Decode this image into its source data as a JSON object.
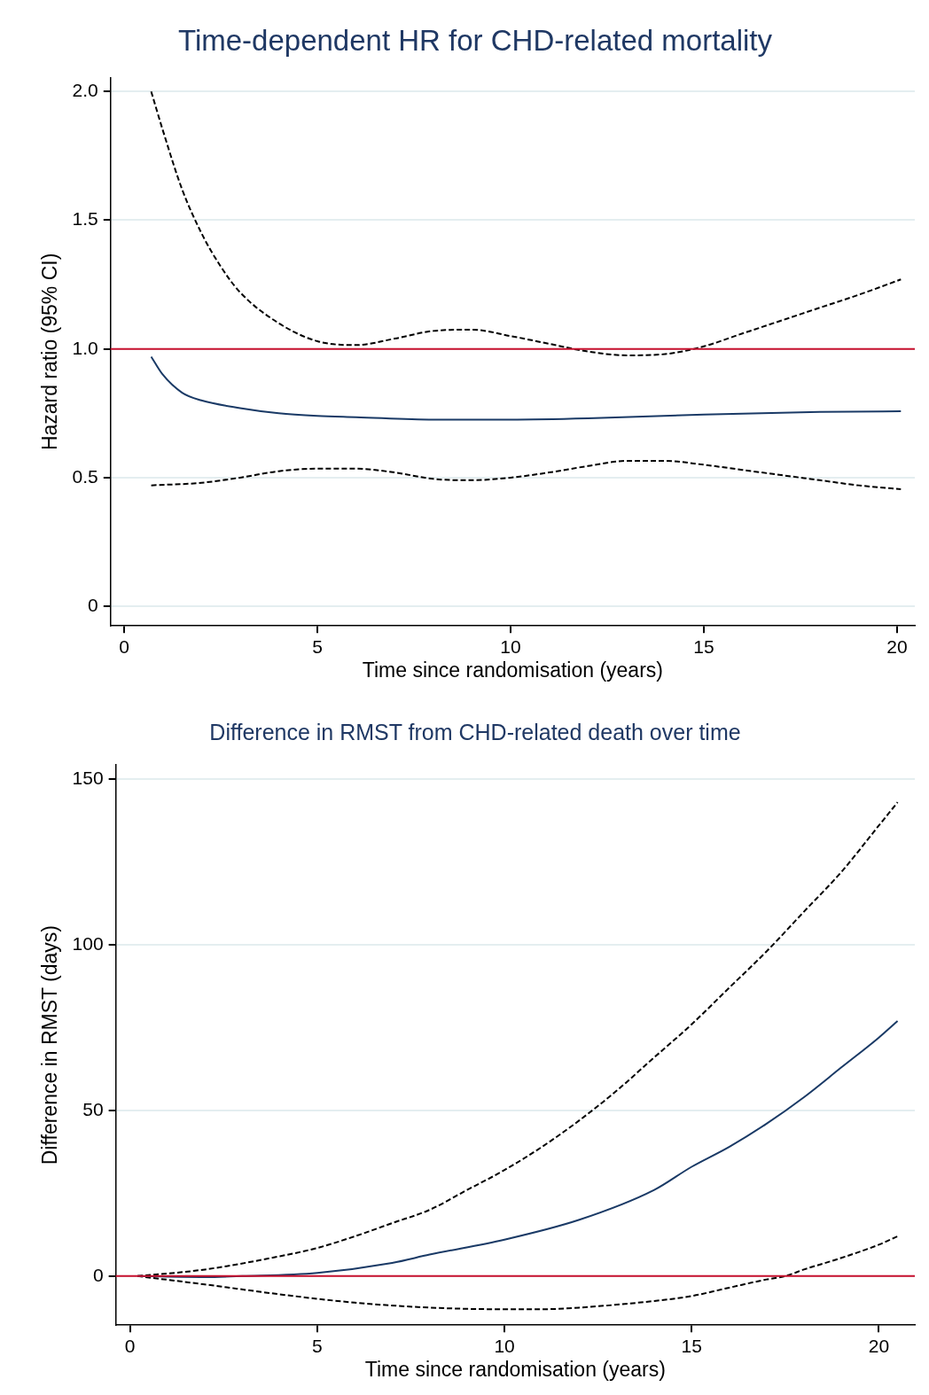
{
  "chart_data": [
    {
      "type": "line",
      "title": "Time-dependent HR for CHD-related mortality",
      "xlabel": "Time since randomisation (years)",
      "ylabel": "Hazard ratio (95% CI)",
      "xlim": [
        -0.35,
        20.46
      ],
      "ylim": [
        -0.076,
        2.054
      ],
      "xticks": [
        0,
        5,
        10,
        15,
        20
      ],
      "yticks": [
        {
          "value": 0,
          "label": "0"
        },
        {
          "value": 0.5,
          "label": "0.5"
        },
        {
          "value": 1,
          "label": "1.0"
        },
        {
          "value": 1.5,
          "label": "1.5"
        },
        {
          "value": 2,
          "label": "2.0"
        }
      ],
      "grid": "y",
      "legend": false,
      "marker": "none",
      "series": [
        {
          "color": "#1a3a66",
          "line_style": "solid",
          "x": [
            0.7,
            1,
            1.5,
            2,
            3,
            4,
            5,
            6,
            8,
            10,
            12,
            15,
            18,
            20.1
          ],
          "values": [
            0.97,
            0.9,
            0.83,
            0.8,
            0.77,
            0.75,
            0.74,
            0.735,
            0.725,
            0.725,
            0.73,
            0.745,
            0.755,
            0.758
          ]
        },
        {
          "color": "#000000",
          "line_style": "dashed",
          "x": [
            0.7,
            1,
            1.5,
            2,
            2.5,
            3,
            4,
            5,
            6,
            7,
            8,
            9,
            10,
            11,
            12,
            13,
            14,
            15,
            16,
            17,
            18,
            19,
            20.1
          ],
          "values": [
            2.0,
            1.85,
            1.62,
            1.45,
            1.32,
            1.22,
            1.1,
            1.03,
            1.015,
            1.04,
            1.07,
            1.075,
            1.05,
            1.02,
            0.99,
            0.975,
            0.98,
            1.01,
            1.06,
            1.11,
            1.16,
            1.21,
            1.27
          ]
        },
        {
          "color": "#000000",
          "line_style": "dashed",
          "x": [
            0.7,
            2,
            3,
            4,
            5,
            6,
            7,
            8,
            9,
            10,
            11,
            12,
            13,
            14,
            15,
            16,
            17,
            18,
            19,
            20.1
          ],
          "values": [
            0.47,
            0.48,
            0.5,
            0.525,
            0.535,
            0.535,
            0.52,
            0.495,
            0.49,
            0.5,
            0.52,
            0.545,
            0.565,
            0.565,
            0.55,
            0.53,
            0.51,
            0.49,
            0.47,
            0.455
          ]
        }
      ],
      "ref_lines": [
        {
          "axis": "y",
          "value": 1,
          "color": "#c8102e"
        }
      ]
    },
    {
      "type": "line",
      "title": "Difference in RMST from CHD-related death over time",
      "xlabel": "Time since randomisation (years)",
      "ylabel": "Difference in RMST (days)",
      "xlim": [
        -0.38,
        20.96
      ],
      "ylim": [
        -14.8,
        154.3
      ],
      "xticks": [
        0,
        5,
        10,
        15,
        20
      ],
      "yticks": [
        0,
        50,
        100,
        150
      ],
      "grid": "y",
      "legend": false,
      "marker": "none",
      "series": [
        {
          "color": "#1a3a66",
          "line_style": "solid",
          "x": [
            0.2,
            2,
            3,
            5,
            7,
            8,
            10,
            12,
            14,
            15,
            16,
            17,
            18,
            19,
            20,
            20.5
          ],
          "values": [
            0,
            -0.3,
            0,
            1,
            4,
            6.5,
            11,
            17,
            26,
            33,
            39,
            46,
            54,
            63,
            72,
            77
          ]
        },
        {
          "color": "#000000",
          "line_style": "dashed",
          "x": [
            0.2,
            2,
            4,
            5,
            6,
            7,
            8,
            9,
            10,
            11,
            12,
            13,
            14,
            15,
            16,
            17,
            18,
            19,
            20,
            20.5
          ],
          "values": [
            0,
            2,
            6,
            8.5,
            12,
            16,
            20,
            26,
            32,
            39,
            47,
            56,
            66,
            76,
            87,
            98,
            110,
            122,
            136,
            143
          ]
        },
        {
          "color": "#000000",
          "line_style": "dashed",
          "x": [
            0.2,
            2,
            4,
            6,
            8,
            10,
            11,
            12,
            14,
            15,
            16,
            17,
            17.5,
            18,
            19,
            20,
            20.5
          ],
          "values": [
            0,
            -2.5,
            -5.5,
            -8,
            -9.5,
            -10,
            -10,
            -9.5,
            -7.5,
            -6,
            -3.5,
            -1,
            0,
            2,
            5.5,
            9.5,
            12
          ]
        }
      ],
      "ref_lines": [
        {
          "axis": "y",
          "value": 0,
          "color": "#c8102e"
        }
      ]
    }
  ]
}
